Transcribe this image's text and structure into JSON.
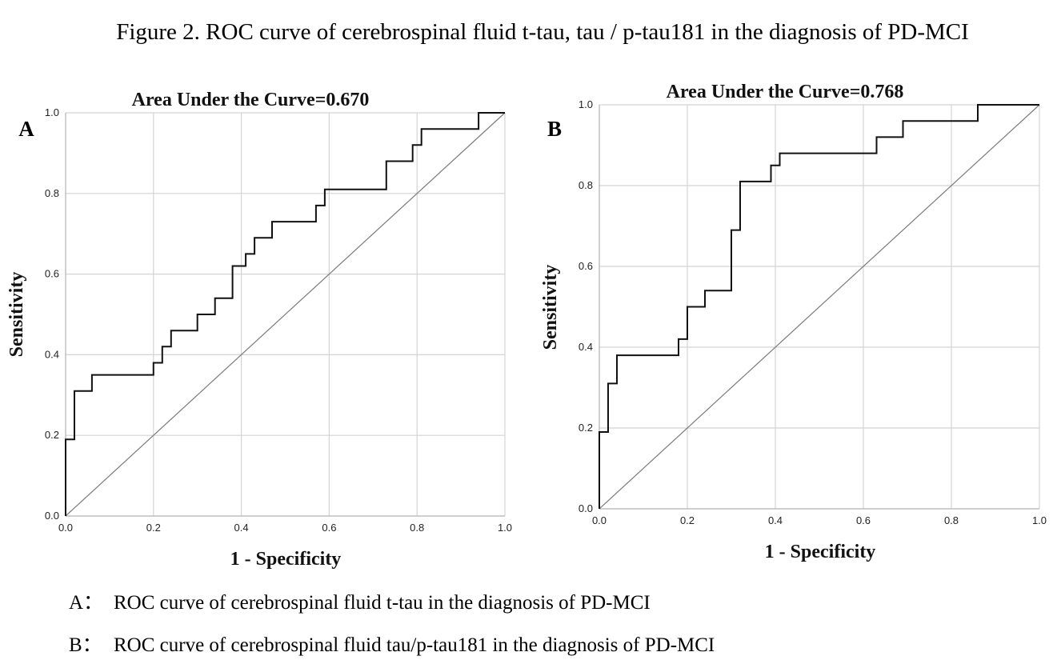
{
  "figure": {
    "title": "Figure 2. ROC curve of cerebrospinal fluid t-tau, tau / p-tau181 in the diagnosis of PD-MCI",
    "captions": [
      {
        "letter": "A：",
        "text": "ROC curve of cerebrospinal fluid t-tau in the diagnosis of PD-MCI"
      },
      {
        "letter": "B：",
        "text": "ROC curve of cerebrospinal fluid tau/p-tau181 in the diagnosis of PD-MCI"
      }
    ]
  },
  "chart_data": [
    {
      "type": "line",
      "panel_label": "A",
      "title": "Area Under the Curve=0.670",
      "xlabel": "1 - Specificity",
      "ylabel": "Sensitivity",
      "xlim": [
        0,
        1
      ],
      "ylim": [
        0,
        1
      ],
      "xticks": [
        "0.0",
        "0.2",
        "0.4",
        "0.6",
        "0.8",
        "1.0"
      ],
      "yticks": [
        "0.0",
        "0.2",
        "0.4",
        "0.6",
        "0.8",
        "1.0"
      ],
      "grid": true,
      "reference_line": [
        [
          0,
          0
        ],
        [
          1,
          1
        ]
      ],
      "series": [
        {
          "x": [
            0,
            0,
            0.02,
            0.02,
            0.06,
            0.06,
            0.2,
            0.2,
            0.22,
            0.22,
            0.24,
            0.24,
            0.3,
            0.3,
            0.34,
            0.34,
            0.38,
            0.38,
            0.41,
            0.41,
            0.43,
            0.43,
            0.47,
            0.47,
            0.57,
            0.57,
            0.59,
            0.59,
            0.73,
            0.73,
            0.79,
            0.79,
            0.81,
            0.81,
            0.94,
            0.94,
            1.0
          ],
          "y": [
            0,
            0.19,
            0.19,
            0.31,
            0.31,
            0.35,
            0.35,
            0.38,
            0.38,
            0.42,
            0.42,
            0.46,
            0.46,
            0.5,
            0.5,
            0.54,
            0.54,
            0.62,
            0.62,
            0.65,
            0.65,
            0.69,
            0.69,
            0.73,
            0.73,
            0.77,
            0.77,
            0.81,
            0.81,
            0.88,
            0.88,
            0.92,
            0.92,
            0.96,
            0.96,
            1.0,
            1.0
          ]
        }
      ]
    },
    {
      "type": "line",
      "panel_label": "B",
      "title": "Area Under the Curve=0.768",
      "xlabel": "1 - Specificity",
      "ylabel": "Sensitivity",
      "xlim": [
        0,
        1
      ],
      "ylim": [
        0,
        1
      ],
      "xticks": [
        "0.0",
        "0.2",
        "0.4",
        "0.6",
        "0.8",
        "1.0"
      ],
      "yticks": [
        "0.0",
        "0.2",
        "0.4",
        "0.6",
        "0.8",
        "1.0"
      ],
      "grid": true,
      "reference_line": [
        [
          0,
          0
        ],
        [
          1,
          1
        ]
      ],
      "series": [
        {
          "x": [
            0,
            0,
            0.02,
            0.02,
            0.04,
            0.04,
            0.18,
            0.18,
            0.2,
            0.2,
            0.24,
            0.24,
            0.3,
            0.3,
            0.32,
            0.32,
            0.39,
            0.39,
            0.41,
            0.41,
            0.63,
            0.63,
            0.69,
            0.69,
            0.86,
            0.86,
            1.0
          ],
          "y": [
            0,
            0.19,
            0.19,
            0.31,
            0.31,
            0.38,
            0.38,
            0.42,
            0.42,
            0.5,
            0.5,
            0.54,
            0.54,
            0.69,
            0.69,
            0.81,
            0.81,
            0.85,
            0.85,
            0.88,
            0.88,
            0.92,
            0.92,
            0.96,
            0.96,
            1.0,
            1.0
          ]
        }
      ]
    }
  ]
}
